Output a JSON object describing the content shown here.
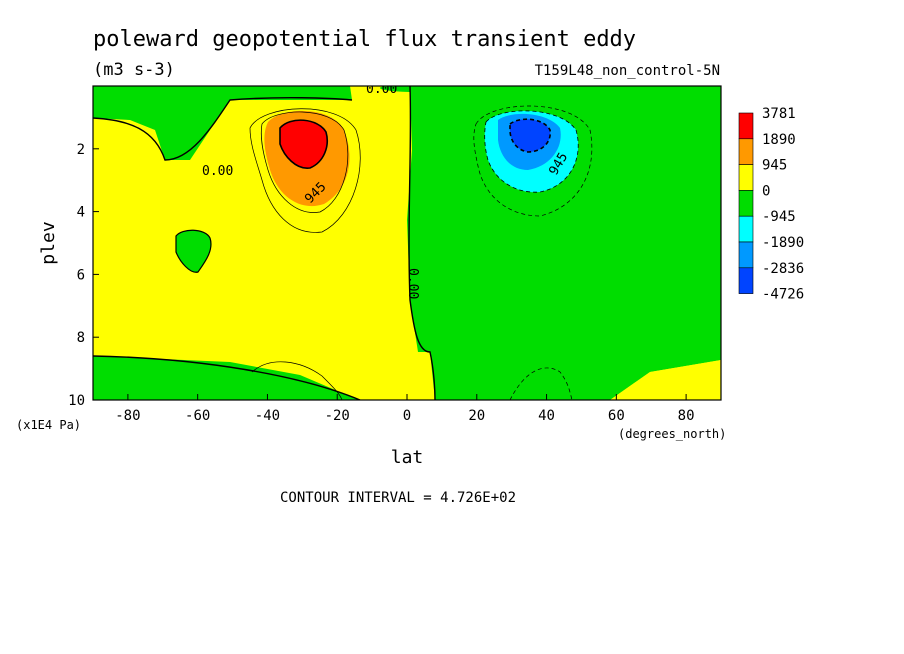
{
  "chart_data": {
    "type": "heatmap",
    "title": "poleward geopotential flux transient eddy",
    "units": "(m3 s-3)",
    "run_label": "T159L48_non_control-5N",
    "xlabel": "lat",
    "x_unit_label": "(degrees_north)",
    "ylabel": "plev",
    "y_unit_label": "(x1E4 Pa)",
    "xlim": [
      -90,
      90
    ],
    "ylim": [
      10,
      0
    ],
    "x_ticks": [
      "-80",
      "-60",
      "-40",
      "-20",
      "0",
      "20",
      "40",
      "60",
      "80"
    ],
    "x_tick_values": [
      -80,
      -60,
      -40,
      -20,
      0,
      20,
      40,
      60,
      80
    ],
    "y_ticks": [
      "2",
      "4",
      "6",
      "8",
      "10"
    ],
    "y_tick_values": [
      2,
      4,
      6,
      8,
      10
    ],
    "contour_interval": "CONTOUR INTERVAL = 4.726E+02",
    "contour_labels": [
      "0.00",
      "0.00",
      "945",
      "0.00",
      "945"
    ],
    "legend": {
      "levels": [
        "3781",
        "1890",
        "945",
        "0",
        "-945",
        "-1890",
        "-2836",
        "-4726"
      ],
      "colors": [
        "#ff0000",
        "#ff9900",
        "#ffff00",
        "#00dd00",
        "#00ffff",
        "#0099ff",
        "#0044ff"
      ]
    },
    "features": [
      {
        "type": "maximum",
        "lat": -30,
        "plev": 2.0,
        "value": 3781
      },
      {
        "type": "minimum",
        "lat": 36,
        "plev": 1.8,
        "value": -4726
      }
    ]
  }
}
